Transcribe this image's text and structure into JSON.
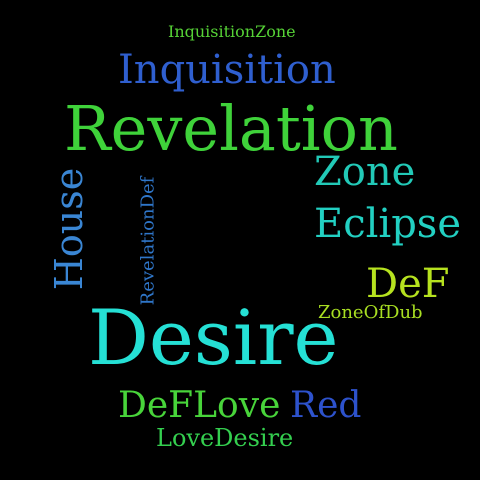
{
  "words": {
    "inquisition_zone": "InquisitionZone",
    "inquisition": "Inquisition",
    "revelation": "Revelation",
    "zone": "Zone",
    "eclipse": "Eclipse",
    "house": "House",
    "revelation_def": "RevelationDef",
    "def": "DeF",
    "zone_of_dub": "ZoneOfDub",
    "desire": "Desire",
    "def_love": "DeFLove",
    "red": "Red",
    "love_desire": "LoveDesire"
  },
  "colors": {
    "background": "#000000",
    "inquisition_zone": "#56d236",
    "inquisition": "#2f5fcf",
    "revelation": "#3fd23a",
    "zone": "#22c9b7",
    "eclipse": "#22d0c2",
    "house": "#3a86d4",
    "revelation_def": "#2f76c9",
    "def": "#b6e21f",
    "zone_of_dub": "#a8de22",
    "desire": "#25e0d5",
    "def_love": "#48d43a",
    "red": "#2d52cc",
    "love_desire": "#34cf4f"
  }
}
